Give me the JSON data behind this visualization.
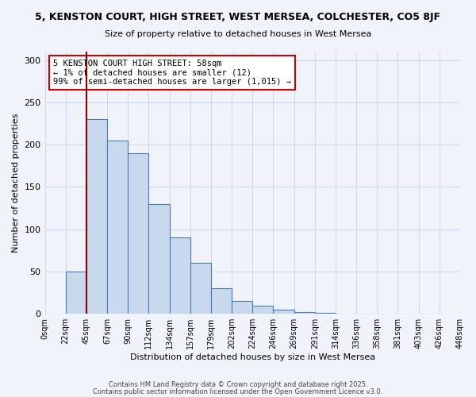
{
  "title": "5, KENSTON COURT, HIGH STREET, WEST MERSEA, COLCHESTER, CO5 8JF",
  "subtitle": "Size of property relative to detached houses in West Mersea",
  "xlabel": "Distribution of detached houses by size in West Mersea",
  "ylabel": "Number of detached properties",
  "bar_values": [
    0,
    50,
    230,
    205,
    190,
    130,
    90,
    60,
    30,
    15,
    10,
    5,
    2,
    1,
    0,
    0,
    0,
    0,
    0,
    0
  ],
  "bin_labels": [
    "0sqm",
    "22sqm",
    "45sqm",
    "67sqm",
    "90sqm",
    "112sqm",
    "134sqm",
    "157sqm",
    "179sqm",
    "202sqm",
    "224sqm",
    "246sqm",
    "269sqm",
    "291sqm",
    "314sqm",
    "336sqm",
    "358sqm",
    "381sqm",
    "403sqm",
    "426sqm",
    "448sqm"
  ],
  "bar_color": "#c8d8ed",
  "bar_edge_color": "#4a7ab5",
  "vline_color": "#8b0000",
  "annotation_title": "5 KENSTON COURT HIGH STREET: 58sqm",
  "annotation_line1": "← 1% of detached houses are smaller (12)",
  "annotation_line2": "99% of semi-detached houses are larger (1,015) →",
  "annotation_box_edge": "#cc0000",
  "ylim": [
    0,
    310
  ],
  "yticks": [
    0,
    50,
    100,
    150,
    200,
    250,
    300
  ],
  "footer1": "Contains HM Land Registry data © Crown copyright and database right 2025.",
  "footer2": "Contains public sector information licensed under the Open Government Licence v3.0.",
  "bg_color": "#f0f4fa",
  "grid_color": "#d0d8e8"
}
